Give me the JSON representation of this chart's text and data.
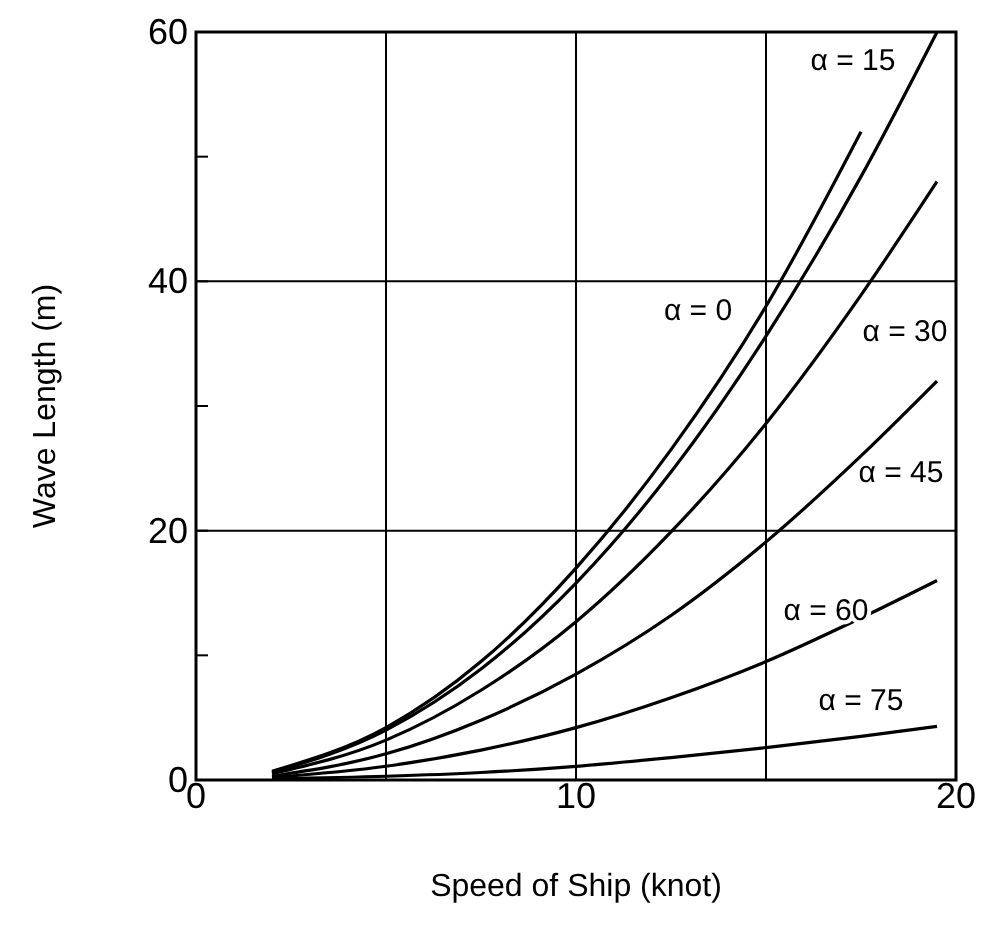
{
  "chart_data": {
    "type": "line",
    "xlabel": "Speed of Ship (knot)",
    "ylabel": "Wave Length (m)",
    "xlim": [
      0,
      20
    ],
    "xticks": [
      0,
      {
        "value": 5,
        "label": null
      },
      10,
      {
        "value": 15,
        "label": null
      },
      20
    ],
    "ylim": [
      0,
      60
    ],
    "yticks": [
      0,
      {
        "value": 10,
        "label": null
      },
      20,
      {
        "value": 30,
        "label": null
      },
      40,
      {
        "value": 50,
        "label": null
      },
      60
    ],
    "grid": true,
    "marker": "none",
    "line_style": "solid",
    "series": [
      {
        "color": "#000000",
        "x": [
          2,
          5,
          7.5,
          10,
          12.5,
          15,
          17.5
        ],
        "values": [
          0.7,
          4.2,
          9.5,
          17,
          26.5,
          38,
          52
        ]
      },
      {
        "color": "#000000",
        "x": [
          2,
          5,
          7.5,
          10,
          12.5,
          15,
          17.5,
          19.5
        ],
        "values": [
          0.6,
          4,
          8.9,
          15.8,
          24.7,
          35.6,
          48.4,
          60
        ]
      },
      {
        "color": "#000000",
        "x": [
          2,
          5,
          7.5,
          10,
          12.5,
          15,
          17.5,
          19.5
        ],
        "values": [
          0.5,
          3.2,
          7.2,
          12.7,
          19.9,
          28.6,
          38.9,
          48
        ]
      },
      {
        "color": "#000000",
        "x": [
          2,
          5,
          7.5,
          10,
          12.5,
          15,
          17.5,
          19.5
        ],
        "values": [
          0.3,
          2.1,
          4.8,
          8.5,
          13.2,
          19.1,
          26,
          32
        ]
      },
      {
        "color": "#000000",
        "x": [
          2,
          5,
          7.5,
          10,
          12.5,
          15,
          17.5,
          19.5
        ],
        "values": [
          0.2,
          1.1,
          2.4,
          4.2,
          6.6,
          9.5,
          13,
          16
        ]
      },
      {
        "color": "#000000",
        "x": [
          2,
          5,
          7.5,
          10,
          12.5,
          15,
          17.5,
          19.5
        ],
        "values": [
          0.1,
          0.3,
          0.6,
          1.1,
          1.8,
          2.6,
          3.5,
          4.3
        ]
      }
    ],
    "annotations": [
      {
        "text": "α = 15",
        "x": 19.5,
        "y": 60
      },
      {
        "text": "α = 0",
        "x": 15,
        "y": 38
      },
      {
        "text": "α = 30",
        "x": 17.5,
        "y": 38.9
      },
      {
        "text": "α = 45",
        "x": 17.5,
        "y": 26
      },
      {
        "text": "α = 60",
        "x": 15,
        "y": 9.5
      },
      {
        "text": "α = 75",
        "x": 17.5,
        "y": 3.5
      }
    ]
  }
}
